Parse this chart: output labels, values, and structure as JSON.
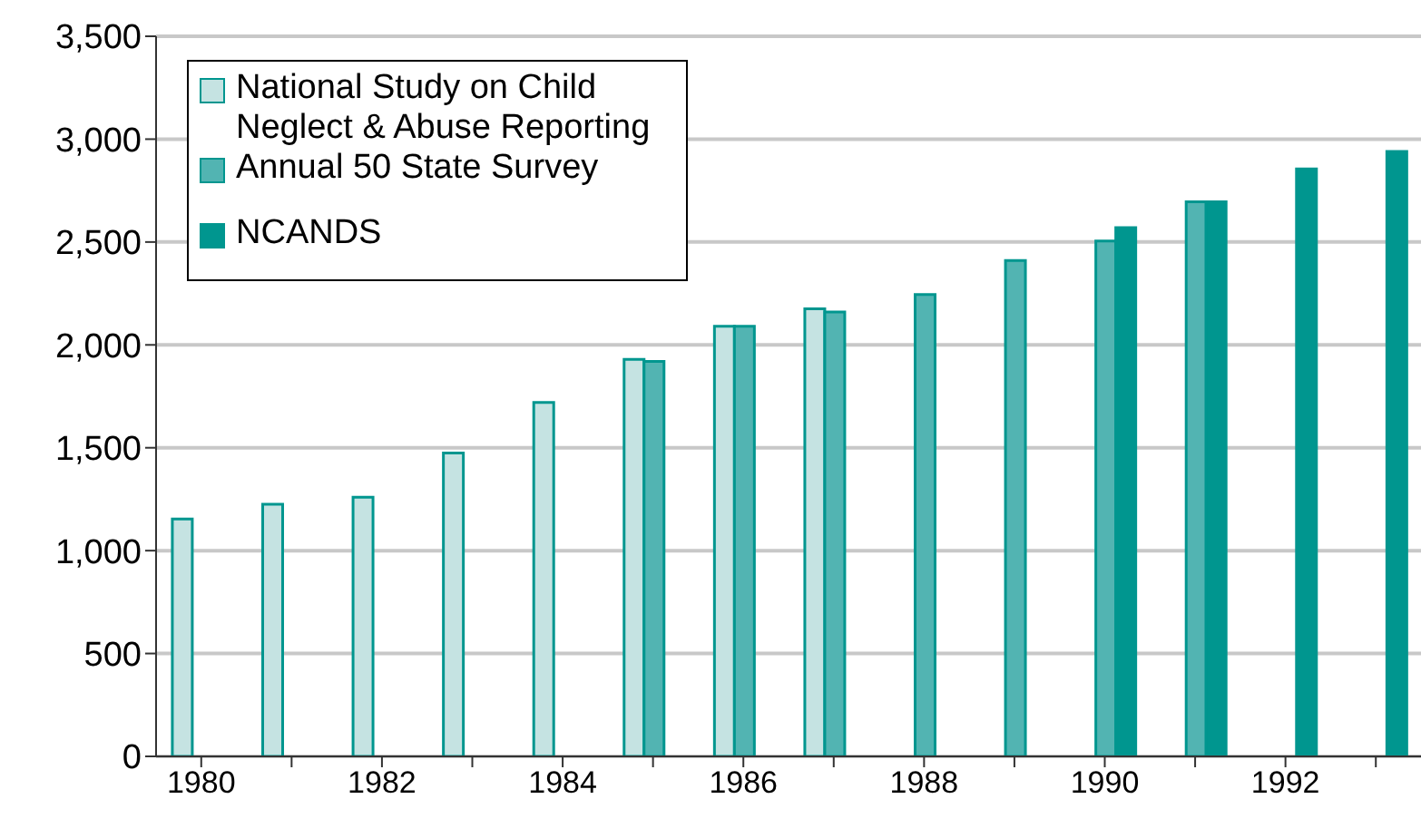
{
  "chart_data": {
    "type": "bar",
    "categories": [
      "1980",
      null,
      "1982",
      null,
      "1984",
      null,
      "1986",
      null,
      "1988",
      null,
      "1990",
      null,
      "1992",
      null
    ],
    "series": [
      {
        "name": "National Study on Child Neglect & Abuse Reporting",
        "color": "#c5e3e2",
        "values": [
          1154,
          1225,
          1260,
          1475,
          1720,
          1930,
          2090,
          2175,
          null,
          null,
          null,
          null,
          null,
          null
        ]
      },
      {
        "name": "Annual 50 State Survey",
        "color": "#52b4b2",
        "values": [
          null,
          null,
          null,
          null,
          null,
          1920,
          2090,
          2160,
          2245,
          2410,
          2505,
          2695,
          null,
          null
        ]
      },
      {
        "name": "NCANDS",
        "color": "#00968f",
        "values": [
          null,
          null,
          null,
          null,
          null,
          null,
          null,
          null,
          null,
          null,
          2570,
          2695,
          2855,
          2940
        ]
      }
    ],
    "ylim": [
      0,
      3500
    ],
    "yticks": [
      {
        "value": 0,
        "label": "0"
      },
      {
        "value": 500,
        "label": "500"
      },
      {
        "value": 1000,
        "label": "1,000"
      },
      {
        "value": 1500,
        "label": "1,500"
      },
      {
        "value": 2000,
        "label": "2,000"
      },
      {
        "value": 2500,
        "label": "2,500"
      },
      {
        "value": 3000,
        "label": "3,000"
      },
      {
        "value": 3500,
        "label": "3,500"
      }
    ],
    "grid": "y",
    "legend": "top left"
  }
}
